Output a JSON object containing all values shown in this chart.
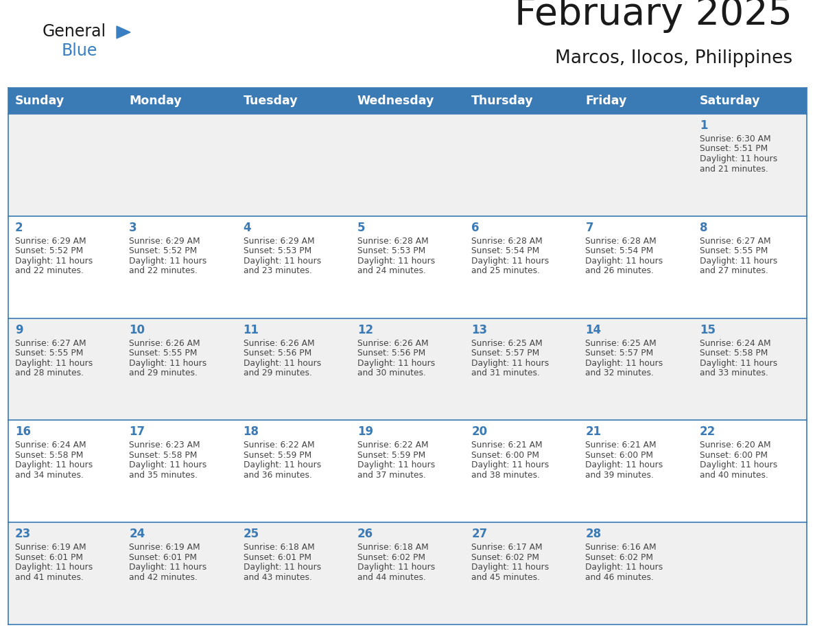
{
  "title": "February 2025",
  "subtitle": "Marcos, Ilocos, Philippines",
  "header_bg": "#3a7ab5",
  "header_text_color": "#ffffff",
  "day_names": [
    "Sunday",
    "Monday",
    "Tuesday",
    "Wednesday",
    "Thursday",
    "Friday",
    "Saturday"
  ],
  "row_bg_light": "#f0f0f0",
  "row_bg_white": "#ffffff",
  "cell_border_color": "#3a7ab5",
  "day_number_color": "#3a7ab5",
  "text_color": "#444444",
  "logo_general_color": "#1a1a1a",
  "logo_blue_color": "#3a7fc1",
  "calendar": [
    [
      null,
      null,
      null,
      null,
      null,
      null,
      {
        "day": 1,
        "sunrise": "6:30 AM",
        "sunset": "5:51 PM",
        "daylight": "11 hours and 21 minutes."
      }
    ],
    [
      {
        "day": 2,
        "sunrise": "6:29 AM",
        "sunset": "5:52 PM",
        "daylight": "11 hours and 22 minutes."
      },
      {
        "day": 3,
        "sunrise": "6:29 AM",
        "sunset": "5:52 PM",
        "daylight": "11 hours and 22 minutes."
      },
      {
        "day": 4,
        "sunrise": "6:29 AM",
        "sunset": "5:53 PM",
        "daylight": "11 hours and 23 minutes."
      },
      {
        "day": 5,
        "sunrise": "6:28 AM",
        "sunset": "5:53 PM",
        "daylight": "11 hours and 24 minutes."
      },
      {
        "day": 6,
        "sunrise": "6:28 AM",
        "sunset": "5:54 PM",
        "daylight": "11 hours and 25 minutes."
      },
      {
        "day": 7,
        "sunrise": "6:28 AM",
        "sunset": "5:54 PM",
        "daylight": "11 hours and 26 minutes."
      },
      {
        "day": 8,
        "sunrise": "6:27 AM",
        "sunset": "5:55 PM",
        "daylight": "11 hours and 27 minutes."
      }
    ],
    [
      {
        "day": 9,
        "sunrise": "6:27 AM",
        "sunset": "5:55 PM",
        "daylight": "11 hours and 28 minutes."
      },
      {
        "day": 10,
        "sunrise": "6:26 AM",
        "sunset": "5:55 PM",
        "daylight": "11 hours and 29 minutes."
      },
      {
        "day": 11,
        "sunrise": "6:26 AM",
        "sunset": "5:56 PM",
        "daylight": "11 hours and 29 minutes."
      },
      {
        "day": 12,
        "sunrise": "6:26 AM",
        "sunset": "5:56 PM",
        "daylight": "11 hours and 30 minutes."
      },
      {
        "day": 13,
        "sunrise": "6:25 AM",
        "sunset": "5:57 PM",
        "daylight": "11 hours and 31 minutes."
      },
      {
        "day": 14,
        "sunrise": "6:25 AM",
        "sunset": "5:57 PM",
        "daylight": "11 hours and 32 minutes."
      },
      {
        "day": 15,
        "sunrise": "6:24 AM",
        "sunset": "5:58 PM",
        "daylight": "11 hours and 33 minutes."
      }
    ],
    [
      {
        "day": 16,
        "sunrise": "6:24 AM",
        "sunset": "5:58 PM",
        "daylight": "11 hours and 34 minutes."
      },
      {
        "day": 17,
        "sunrise": "6:23 AM",
        "sunset": "5:58 PM",
        "daylight": "11 hours and 35 minutes."
      },
      {
        "day": 18,
        "sunrise": "6:22 AM",
        "sunset": "5:59 PM",
        "daylight": "11 hours and 36 minutes."
      },
      {
        "day": 19,
        "sunrise": "6:22 AM",
        "sunset": "5:59 PM",
        "daylight": "11 hours and 37 minutes."
      },
      {
        "day": 20,
        "sunrise": "6:21 AM",
        "sunset": "6:00 PM",
        "daylight": "11 hours and 38 minutes."
      },
      {
        "day": 21,
        "sunrise": "6:21 AM",
        "sunset": "6:00 PM",
        "daylight": "11 hours and 39 minutes."
      },
      {
        "day": 22,
        "sunrise": "6:20 AM",
        "sunset": "6:00 PM",
        "daylight": "11 hours and 40 minutes."
      }
    ],
    [
      {
        "day": 23,
        "sunrise": "6:19 AM",
        "sunset": "6:01 PM",
        "daylight": "11 hours and 41 minutes."
      },
      {
        "day": 24,
        "sunrise": "6:19 AM",
        "sunset": "6:01 PM",
        "daylight": "11 hours and 42 minutes."
      },
      {
        "day": 25,
        "sunrise": "6:18 AM",
        "sunset": "6:01 PM",
        "daylight": "11 hours and 43 minutes."
      },
      {
        "day": 26,
        "sunrise": "6:18 AM",
        "sunset": "6:02 PM",
        "daylight": "11 hours and 44 minutes."
      },
      {
        "day": 27,
        "sunrise": "6:17 AM",
        "sunset": "6:02 PM",
        "daylight": "11 hours and 45 minutes."
      },
      {
        "day": 28,
        "sunrise": "6:16 AM",
        "sunset": "6:02 PM",
        "daylight": "11 hours and 46 minutes."
      },
      null
    ]
  ]
}
